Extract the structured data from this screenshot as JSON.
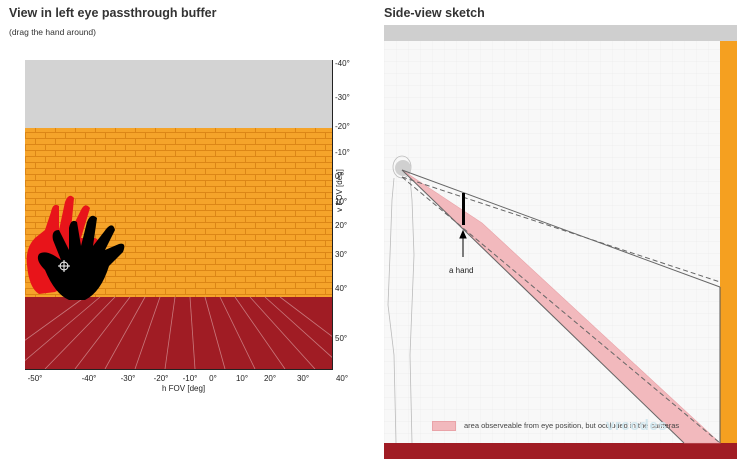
{
  "left_panel": {
    "title": "View in left eye passthrough buffer",
    "hint": "(drag the hand around)",
    "vaxis_label": "v FOV [deg]",
    "haxis_label": "h FOV [deg]",
    "vticks": [
      "-40°",
      "-30°",
      "-20°",
      "-10°",
      "0°",
      "10°",
      "20°",
      "30°",
      "40°",
      "50°"
    ],
    "hticks": [
      "-50°",
      "-40°",
      "-30°",
      "-20°",
      "-10°",
      "0°",
      "10°",
      "20°",
      "30°",
      "40°"
    ]
  },
  "right_panel": {
    "title": "Side-view sketch",
    "hand_label": "a hand",
    "legend_text": "area observeable from eye position, but occluded in the cameras",
    "watermark": "vrcodes"
  },
  "colors": {
    "sky": "#d3d3d3",
    "brick": "#f5a42a",
    "mortar": "#e08a18",
    "floor": "#a01c24",
    "hand_eye": "#000000",
    "hand_camera": "#e8141a",
    "occlusion": "#f2b9bd",
    "wall": "#f5a020"
  }
}
